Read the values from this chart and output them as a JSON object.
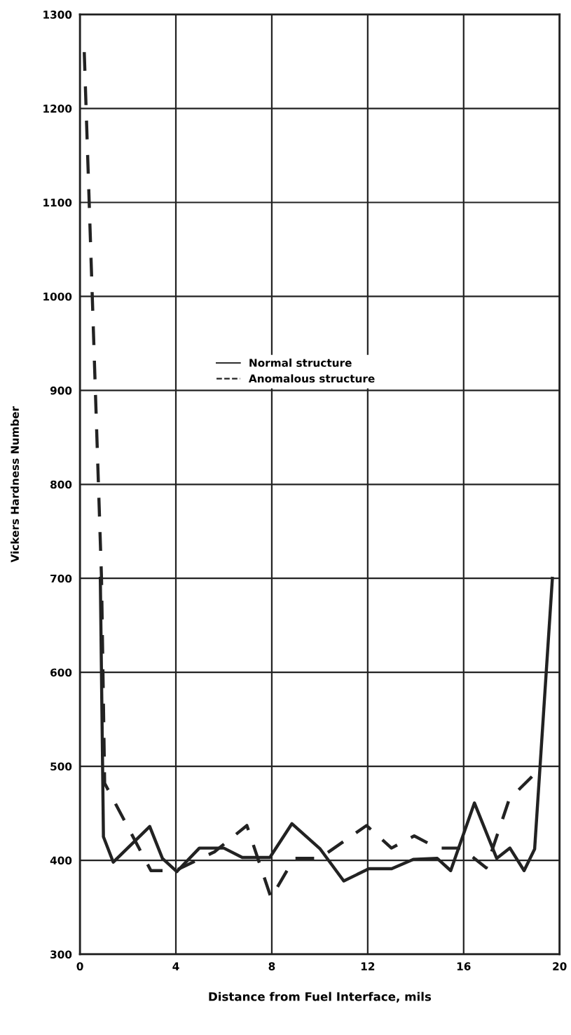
{
  "chart_data": {
    "type": "line",
    "xlabel": "Distance from Fuel Interface, mils",
    "ylabel": "Vickers Hardness Number",
    "xlim": [
      0,
      20
    ],
    "xticks": [
      0,
      4,
      8,
      12,
      16,
      20
    ],
    "ylim": [
      300,
      1300
    ],
    "yticks": [
      300,
      400,
      500,
      600,
      700,
      800,
      900,
      1000,
      1100,
      1200,
      1300
    ],
    "grid": true,
    "legend": "center",
    "marker": "none",
    "series": [
      {
        "name": "Normal structure",
        "color": "#222222",
        "line_style": "solid",
        "x": [
          0.85,
          0.98,
          1.39,
          2.91,
          3.44,
          4.04,
          4.98,
          6.0,
          6.77,
          7.92,
          8.84,
          10.02,
          11.0,
          12.05,
          13.0,
          13.9,
          14.9,
          15.46,
          16.45,
          17.38,
          17.93,
          18.52,
          18.96,
          19.7
        ],
        "values": [
          700,
          425,
          398,
          436,
          402,
          388,
          413,
          413,
          403,
          403,
          439,
          412,
          378,
          391,
          391,
          401,
          402,
          389,
          461,
          402,
          413,
          389,
          412,
          700
        ]
      },
      {
        "name": "Anomalous structure",
        "color": "#222222",
        "line_style": "dashed",
        "x": [
          0.18,
          0.9,
          1.03,
          2.96,
          3.97,
          5.61,
          6.96,
          7.97,
          8.93,
          9.98,
          11.95,
          12.99,
          13.94,
          14.9,
          15.9,
          16.94,
          17.9,
          19.16
        ],
        "values": [
          1260,
          700,
          482,
          389,
          389,
          409,
          437,
          360,
          402,
          402,
          437,
          413,
          426,
          413,
          413,
          392,
          465,
          497
        ]
      }
    ]
  }
}
